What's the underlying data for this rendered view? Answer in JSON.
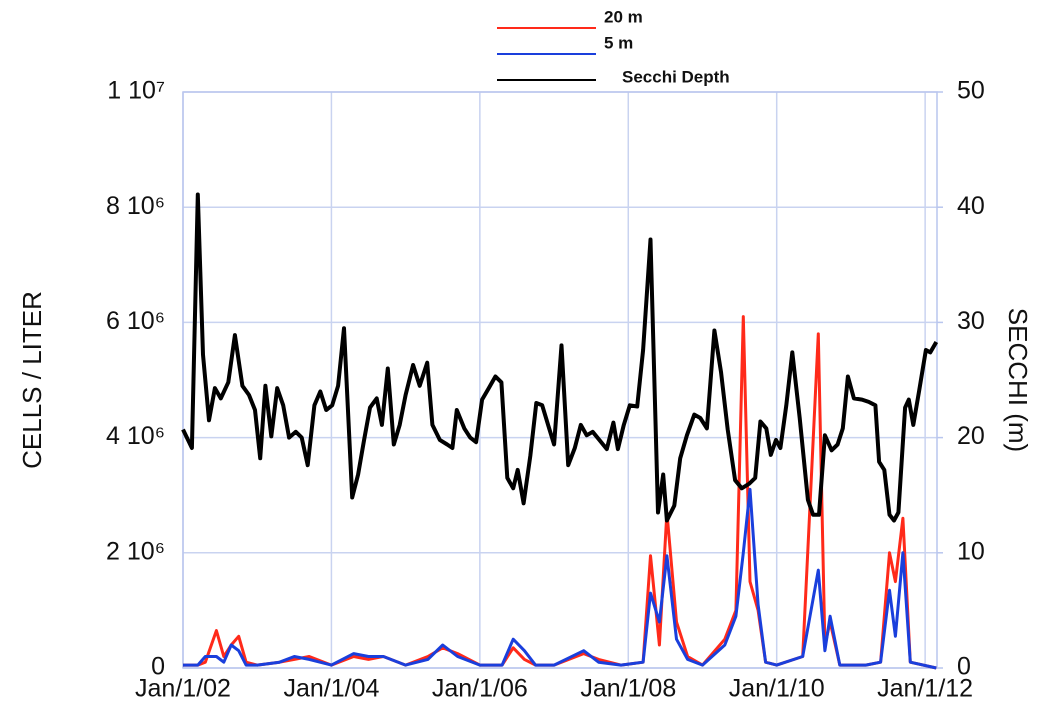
{
  "chart_data": {
    "type": "line",
    "y_label": "CELLS / LITER",
    "y2_label": "SECCHI (m)",
    "xlim": [
      2002,
      2012.16
    ],
    "xticks": [
      {
        "value": 2002,
        "label": "Jan/1/02"
      },
      {
        "value": 2004,
        "label": "Jan/1/04"
      },
      {
        "value": 2006,
        "label": "Jan/1/06"
      },
      {
        "value": 2008,
        "label": "Jan/1/08"
      },
      {
        "value": 2010,
        "label": "Jan/1/10"
      },
      {
        "value": 2012,
        "label": "Jan/1/12"
      }
    ],
    "ylim": [
      0,
      10000000
    ],
    "yticks": [
      0,
      {
        "value": 2000000,
        "label": "2 10⁶"
      },
      {
        "value": 4000000,
        "label": "4 10⁶"
      },
      {
        "value": 6000000,
        "label": "6 10⁶"
      },
      {
        "value": 8000000,
        "label": "8 10⁶"
      },
      {
        "value": 10000000,
        "label": "1 10⁷"
      }
    ],
    "y2lim": [
      0,
      50
    ],
    "y2ticks": [
      0,
      10,
      20,
      30,
      40,
      50
    ],
    "grid": true,
    "legend": "top",
    "series": [
      {
        "name": "20 m",
        "color": "#ff2a1a",
        "x": [
          2002.0,
          2002.2,
          2002.3,
          2002.45,
          2002.55,
          2002.65,
          2002.75,
          2002.85,
          2003.0,
          2003.3,
          2003.5,
          2003.7,
          2004.0,
          2004.3,
          2004.5,
          2004.7,
          2005.0,
          2005.3,
          2005.5,
          2005.7,
          2006.0,
          2006.3,
          2006.45,
          2006.6,
          2006.75,
          2007.0,
          2007.4,
          2007.6,
          2007.9,
          2008.2,
          2008.3,
          2008.42,
          2008.52,
          2008.65,
          2008.8,
          2009.0,
          2009.3,
          2009.45,
          2009.55,
          2009.64,
          2009.75,
          2009.85,
          2010.0,
          2010.35,
          2010.56,
          2010.65,
          2010.72,
          2010.85,
          2011.2,
          2011.4,
          2011.52,
          2011.6,
          2011.7,
          2011.8,
          2012.15
        ],
        "values": [
          50000,
          50000,
          100000,
          650000,
          200000,
          400000,
          550000,
          100000,
          50000,
          100000,
          150000,
          200000,
          50000,
          200000,
          150000,
          200000,
          50000,
          200000,
          350000,
          250000,
          50000,
          50000,
          350000,
          150000,
          50000,
          50000,
          250000,
          150000,
          50000,
          100000,
          1950000,
          400000,
          2700000,
          800000,
          200000,
          50000,
          500000,
          1000000,
          6100000,
          1500000,
          1000000,
          100000,
          50000,
          200000,
          5800000,
          400000,
          800000,
          50000,
          50000,
          100000,
          2000000,
          1500000,
          2600000,
          100000,
          0
        ]
      },
      {
        "name": "5 m",
        "color": "#1a3fdc",
        "x": [
          2002.0,
          2002.2,
          2002.3,
          2002.45,
          2002.55,
          2002.65,
          2002.75,
          2002.85,
          2003.0,
          2003.3,
          2003.5,
          2003.7,
          2004.0,
          2004.3,
          2004.5,
          2004.7,
          2005.0,
          2005.3,
          2005.5,
          2005.7,
          2006.0,
          2006.3,
          2006.45,
          2006.6,
          2006.75,
          2007.0,
          2007.4,
          2007.6,
          2007.9,
          2008.2,
          2008.3,
          2008.42,
          2008.52,
          2008.65,
          2008.8,
          2009.0,
          2009.3,
          2009.45,
          2009.55,
          2009.64,
          2009.75,
          2009.85,
          2010.0,
          2010.35,
          2010.56,
          2010.65,
          2010.72,
          2010.85,
          2011.2,
          2011.4,
          2011.52,
          2011.6,
          2011.7,
          2011.8,
          2012.15
        ],
        "values": [
          50000,
          50000,
          200000,
          200000,
          100000,
          400000,
          300000,
          50000,
          50000,
          100000,
          200000,
          150000,
          50000,
          250000,
          200000,
          200000,
          50000,
          150000,
          400000,
          200000,
          50000,
          50000,
          500000,
          300000,
          50000,
          50000,
          300000,
          100000,
          50000,
          100000,
          1300000,
          800000,
          1950000,
          500000,
          150000,
          50000,
          400000,
          900000,
          2000000,
          3100000,
          1100000,
          100000,
          50000,
          200000,
          1700000,
          300000,
          900000,
          50000,
          50000,
          100000,
          1350000,
          550000,
          2000000,
          100000,
          0
        ]
      },
      {
        "name": "Secchi Depth",
        "color": "#000000",
        "axis": "y2",
        "x": [
          2002.0,
          2002.12,
          2002.2,
          2002.27,
          2002.35,
          2002.43,
          2002.51,
          2002.61,
          2002.7,
          2002.8,
          2002.89,
          2002.97,
          2003.04,
          2003.11,
          2003.19,
          2003.27,
          2003.35,
          2003.43,
          2003.52,
          2003.6,
          2003.68,
          2003.77,
          2003.85,
          2003.93,
          2004.01,
          2004.09,
          2004.17,
          2004.28,
          2004.36,
          2004.44,
          2004.52,
          2004.61,
          2004.68,
          2004.76,
          2004.84,
          2004.92,
          2005.0,
          2005.1,
          2005.19,
          2005.29,
          2005.36,
          2005.46,
          2005.56,
          2005.63,
          2005.69,
          2005.79,
          2005.87,
          2005.95,
          2006.03,
          2006.12,
          2006.21,
          2006.29,
          2006.37,
          2006.45,
          2006.51,
          2006.59,
          2006.68,
          2006.76,
          2006.84,
          2006.92,
          2007.0,
          2007.1,
          2007.19,
          2007.28,
          2007.36,
          2007.44,
          2007.52,
          2007.61,
          2007.71,
          2007.8,
          2007.86,
          2007.94,
          2008.02,
          2008.12,
          2008.2,
          2008.3,
          2008.4,
          2008.47,
          2008.52,
          2008.62,
          2008.7,
          2008.79,
          2008.89,
          2008.97,
          2009.06,
          2009.16,
          2009.25,
          2009.34,
          2009.44,
          2009.53,
          2009.63,
          2009.71,
          2009.78,
          2009.86,
          2009.92,
          2009.99,
          2010.05,
          2010.13,
          2010.21,
          2010.31,
          2010.42,
          2010.49,
          2010.57,
          2010.65,
          2010.74,
          2010.82,
          2010.89,
          2010.96,
          2011.04,
          2011.15,
          2011.24,
          2011.33,
          2011.38,
          2011.45,
          2011.52,
          2011.58,
          2011.64,
          2011.73,
          2011.78,
          2011.84,
          2011.92,
          2012.01,
          2012.07,
          2012.15
        ],
        "values": [
          20.7,
          19.1,
          41.1,
          27.2,
          21.5,
          24.3,
          23.4,
          24.8,
          28.9,
          24.5,
          23.7,
          22.4,
          18.2,
          24.5,
          20.1,
          24.3,
          22.8,
          20.0,
          20.5,
          20.0,
          17.6,
          22.8,
          24.0,
          22.4,
          22.8,
          24.5,
          29.5,
          14.8,
          16.8,
          19.8,
          22.6,
          23.4,
          21.1,
          26.0,
          19.4,
          21.1,
          23.7,
          26.3,
          24.5,
          26.5,
          21.1,
          19.8,
          19.4,
          19.1,
          22.4,
          20.8,
          20.0,
          19.6,
          23.3,
          24.3,
          25.3,
          24.8,
          16.5,
          15.6,
          17.2,
          14.3,
          18.4,
          23.0,
          22.8,
          21.1,
          19.4,
          28.0,
          17.6,
          19.1,
          21.1,
          20.2,
          20.5,
          19.8,
          19.0,
          21.3,
          19.0,
          21.1,
          22.8,
          22.7,
          27.6,
          37.2,
          13.5,
          16.8,
          12.8,
          14.1,
          18.2,
          20.2,
          22.0,
          21.7,
          20.8,
          29.3,
          25.7,
          20.7,
          16.3,
          15.6,
          16.0,
          16.5,
          21.4,
          20.8,
          18.5,
          19.8,
          19.1,
          22.8,
          27.4,
          21.7,
          14.6,
          13.3,
          13.3,
          20.2,
          18.9,
          19.4,
          20.8,
          25.3,
          23.4,
          23.3,
          23.1,
          22.8,
          17.9,
          17.2,
          13.3,
          12.8,
          13.5,
          22.6,
          23.3,
          21.1,
          24.1,
          27.6,
          27.4,
          28.3
        ]
      }
    ]
  }
}
